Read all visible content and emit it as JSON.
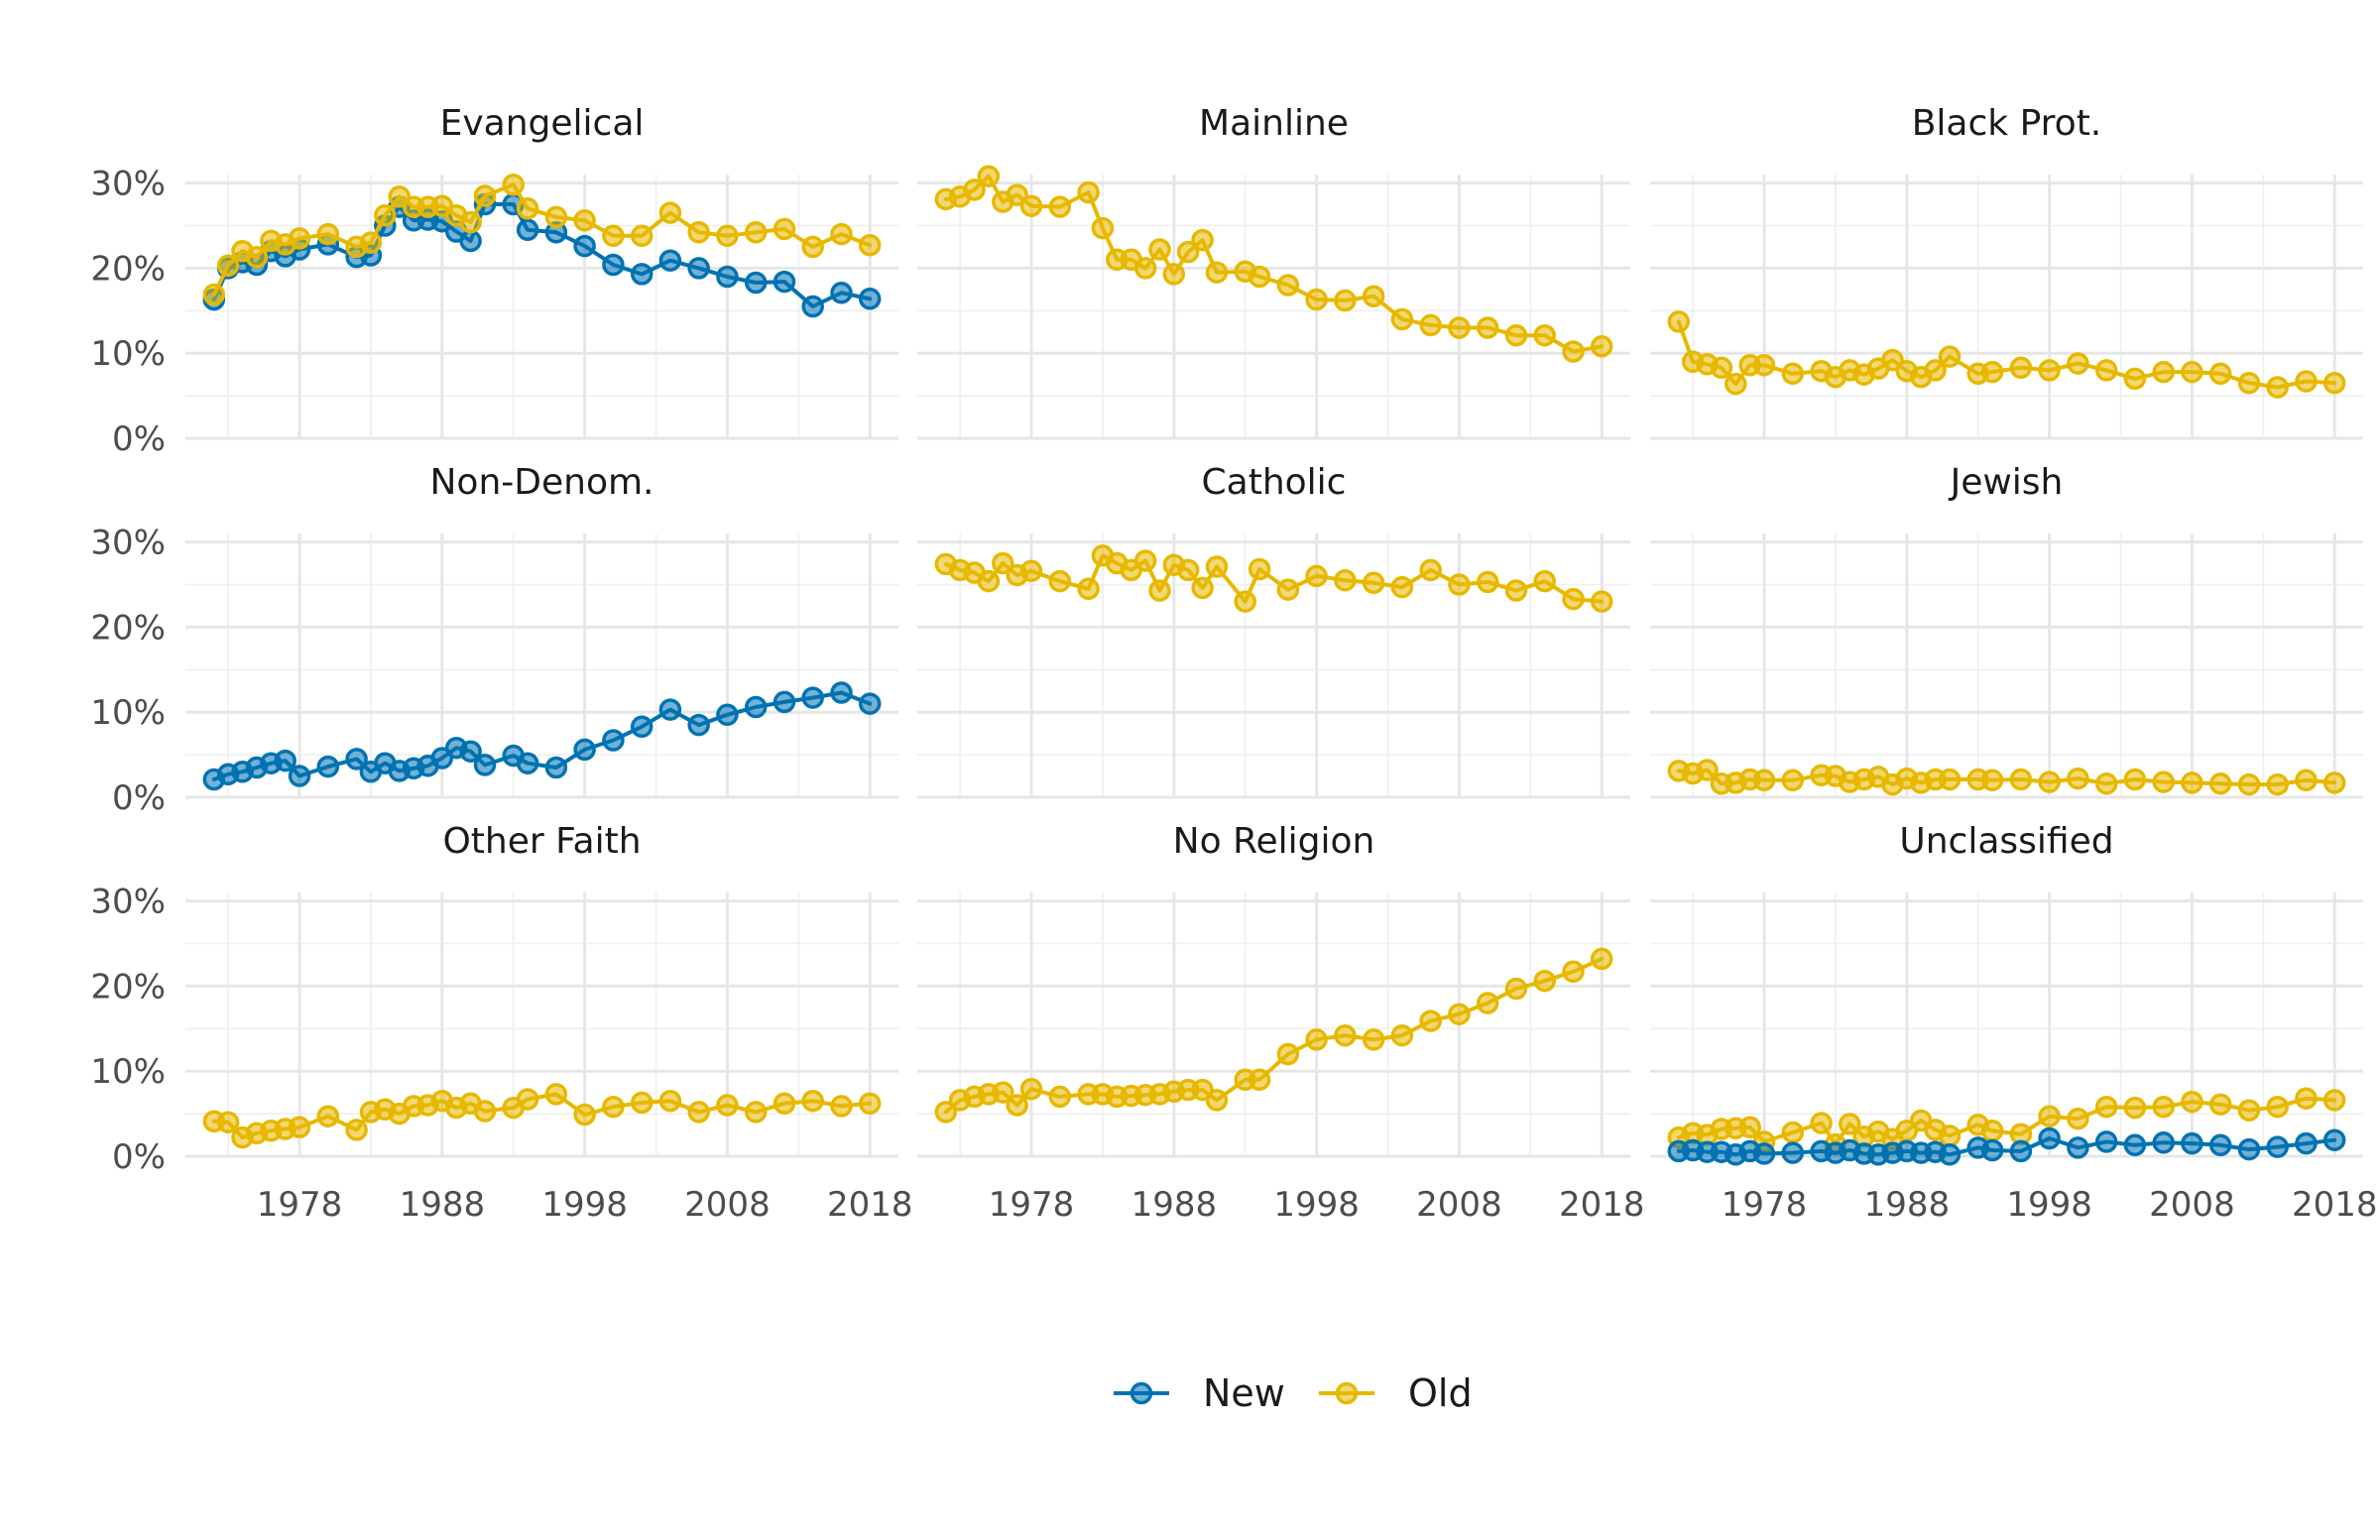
{
  "chart_data": {
    "type": "line",
    "layout": "facet-grid-3x3",
    "title": "",
    "xlabel": "",
    "ylabel": "",
    "xlim": [
      1970,
      2020
    ],
    "ylim": [
      0,
      0.31
    ],
    "x_ticks": [
      1978,
      1988,
      1998,
      2008,
      2018
    ],
    "x_tick_labels": [
      "1978",
      "1988",
      "1998",
      "2008",
      "2018"
    ],
    "y_ticks": [
      0,
      0.1,
      0.2,
      0.3
    ],
    "y_tick_labels": [
      "0%",
      "10%",
      "20%",
      "30%"
    ],
    "grid": true,
    "legend": {
      "position": "bottom",
      "entries": [
        {
          "name": "New",
          "color": "#0072B2"
        },
        {
          "name": "Old",
          "color": "#E7B800"
        }
      ]
    },
    "panels": [
      {
        "title": "Evangelical",
        "series": [
          {
            "name": "New",
            "x": [
              1972,
              1973,
              1974,
              1975,
              1976,
              1977,
              1978,
              1980,
              1982,
              1983,
              1984,
              1985,
              1986,
              1987,
              1988,
              1989,
              1990,
              1991,
              1993,
              1994,
              1996,
              1998,
              2000,
              2002,
              2004,
              2006,
              2008,
              2010,
              2012,
              2014,
              2016,
              2018
            ],
            "y": [
              0.163,
              0.2,
              0.207,
              0.204,
              0.22,
              0.214,
              0.222,
              0.228,
              0.213,
              0.215,
              0.25,
              0.272,
              0.256,
              0.257,
              0.255,
              0.243,
              0.232,
              0.275,
              0.275,
              0.245,
              0.242,
              0.226,
              0.204,
              0.193,
              0.209,
              0.2,
              0.19,
              0.183,
              0.184,
              0.155,
              0.171,
              0.164
            ]
          },
          {
            "name": "Old",
            "x": [
              1972,
              1973,
              1974,
              1975,
              1976,
              1977,
              1978,
              1980,
              1982,
              1983,
              1984,
              1985,
              1986,
              1987,
              1988,
              1989,
              1990,
              1991,
              1993,
              1994,
              1996,
              1998,
              2000,
              2002,
              2004,
              2006,
              2008,
              2010,
              2012,
              2014,
              2016,
              2018
            ],
            "y": [
              0.169,
              0.203,
              0.22,
              0.213,
              0.232,
              0.228,
              0.235,
              0.24,
              0.225,
              0.23,
              0.262,
              0.284,
              0.272,
              0.272,
              0.273,
              0.262,
              0.254,
              0.285,
              0.298,
              0.27,
              0.26,
              0.256,
              0.238,
              0.238,
              0.265,
              0.242,
              0.238,
              0.242,
              0.246,
              0.225,
              0.24,
              0.227
            ]
          }
        ]
      },
      {
        "title": "Mainline",
        "series": [
          {
            "name": "Old",
            "x": [
              1972,
              1973,
              1974,
              1975,
              1976,
              1977,
              1978,
              1980,
              1982,
              1983,
              1984,
              1985,
              1986,
              1987,
              1988,
              1989,
              1990,
              1991,
              1993,
              1994,
              1996,
              1998,
              2000,
              2002,
              2004,
              2006,
              2008,
              2010,
              2012,
              2014,
              2016,
              2018
            ],
            "y": [
              0.281,
              0.284,
              0.292,
              0.308,
              0.278,
              0.286,
              0.273,
              0.272,
              0.289,
              0.247,
              0.21,
              0.21,
              0.2,
              0.222,
              0.193,
              0.219,
              0.233,
              0.195,
              0.196,
              0.19,
              0.18,
              0.163,
              0.162,
              0.167,
              0.14,
              0.133,
              0.13,
              0.13,
              0.121,
              0.121,
              0.102,
              0.108
            ]
          }
        ]
      },
      {
        "title": "Black Prot.",
        "series": [
          {
            "name": "Old",
            "x": [
              1972,
              1973,
              1974,
              1975,
              1976,
              1977,
              1978,
              1980,
              1982,
              1983,
              1984,
              1985,
              1986,
              1987,
              1988,
              1989,
              1990,
              1991,
              1993,
              1994,
              1996,
              1998,
              2000,
              2002,
              2004,
              2006,
              2008,
              2010,
              2012,
              2014,
              2016,
              2018
            ],
            "y": [
              0.137,
              0.09,
              0.087,
              0.083,
              0.064,
              0.086,
              0.086,
              0.076,
              0.079,
              0.072,
              0.08,
              0.075,
              0.082,
              0.092,
              0.079,
              0.072,
              0.08,
              0.096,
              0.076,
              0.078,
              0.083,
              0.08,
              0.088,
              0.08,
              0.07,
              0.078,
              0.078,
              0.076,
              0.065,
              0.06,
              0.067,
              0.065
            ]
          }
        ]
      },
      {
        "title": "Non-Denom.",
        "series": [
          {
            "name": "New",
            "x": [
              1972,
              1973,
              1974,
              1975,
              1976,
              1977,
              1978,
              1980,
              1982,
              1983,
              1984,
              1985,
              1986,
              1987,
              1988,
              1989,
              1990,
              1991,
              1993,
              1994,
              1996,
              1998,
              2000,
              2002,
              2004,
              2006,
              2008,
              2010,
              2012,
              2014,
              2016,
              2018
            ],
            "y": [
              0.021,
              0.027,
              0.03,
              0.035,
              0.04,
              0.043,
              0.025,
              0.036,
              0.045,
              0.03,
              0.04,
              0.031,
              0.034,
              0.037,
              0.046,
              0.058,
              0.054,
              0.038,
              0.049,
              0.04,
              0.035,
              0.056,
              0.067,
              0.083,
              0.103,
              0.085,
              0.097,
              0.106,
              0.112,
              0.117,
              0.123,
              0.11
            ]
          }
        ]
      },
      {
        "title": "Catholic",
        "series": [
          {
            "name": "Old",
            "x": [
              1972,
              1973,
              1974,
              1975,
              1976,
              1977,
              1978,
              1980,
              1982,
              1983,
              1984,
              1985,
              1986,
              1987,
              1988,
              1989,
              1990,
              1991,
              1993,
              1994,
              1996,
              1998,
              2000,
              2002,
              2004,
              2006,
              2008,
              2010,
              2012,
              2014,
              2016,
              2018
            ],
            "y": [
              0.274,
              0.267,
              0.264,
              0.254,
              0.275,
              0.261,
              0.266,
              0.254,
              0.245,
              0.284,
              0.275,
              0.267,
              0.278,
              0.243,
              0.273,
              0.267,
              0.246,
              0.271,
              0.23,
              0.268,
              0.244,
              0.26,
              0.255,
              0.252,
              0.247,
              0.267,
              0.25,
              0.253,
              0.243,
              0.254,
              0.233,
              0.23
            ]
          }
        ]
      },
      {
        "title": "Jewish",
        "series": [
          {
            "name": "Old",
            "x": [
              1972,
              1973,
              1974,
              1975,
              1976,
              1977,
              1978,
              1980,
              1982,
              1983,
              1984,
              1985,
              1986,
              1987,
              1988,
              1989,
              1990,
              1991,
              1993,
              1994,
              1996,
              1998,
              2000,
              2002,
              2004,
              2006,
              2008,
              2010,
              2012,
              2014,
              2016,
              2018
            ],
            "y": [
              0.031,
              0.028,
              0.032,
              0.016,
              0.017,
              0.021,
              0.02,
              0.02,
              0.026,
              0.025,
              0.018,
              0.021,
              0.024,
              0.015,
              0.022,
              0.017,
              0.021,
              0.021,
              0.021,
              0.02,
              0.021,
              0.018,
              0.022,
              0.016,
              0.021,
              0.018,
              0.017,
              0.016,
              0.015,
              0.015,
              0.02,
              0.017
            ]
          }
        ]
      },
      {
        "title": "Other Faith",
        "series": [
          {
            "name": "Old",
            "x": [
              1972,
              1973,
              1974,
              1975,
              1976,
              1977,
              1978,
              1980,
              1982,
              1983,
              1984,
              1985,
              1986,
              1987,
              1988,
              1989,
              1990,
              1991,
              1993,
              1994,
              1996,
              1998,
              2000,
              2002,
              2004,
              2006,
              2008,
              2010,
              2012,
              2014,
              2016,
              2018
            ],
            "y": [
              0.041,
              0.04,
              0.022,
              0.027,
              0.03,
              0.032,
              0.034,
              0.047,
              0.031,
              0.052,
              0.055,
              0.05,
              0.059,
              0.06,
              0.065,
              0.057,
              0.062,
              0.053,
              0.057,
              0.067,
              0.073,
              0.049,
              0.058,
              0.063,
              0.065,
              0.052,
              0.06,
              0.052,
              0.062,
              0.065,
              0.059,
              0.062
            ]
          }
        ]
      },
      {
        "title": "No Religion",
        "series": [
          {
            "name": "Old",
            "x": [
              1972,
              1973,
              1974,
              1975,
              1976,
              1977,
              1978,
              1980,
              1982,
              1983,
              1984,
              1985,
              1986,
              1987,
              1988,
              1989,
              1990,
              1991,
              1993,
              1994,
              1996,
              1998,
              2000,
              2002,
              2004,
              2006,
              2008,
              2010,
              2012,
              2014,
              2016,
              2018
            ],
            "y": [
              0.052,
              0.066,
              0.07,
              0.073,
              0.075,
              0.06,
              0.079,
              0.07,
              0.073,
              0.073,
              0.07,
              0.071,
              0.072,
              0.073,
              0.076,
              0.078,
              0.078,
              0.066,
              0.09,
              0.09,
              0.12,
              0.137,
              0.142,
              0.137,
              0.142,
              0.159,
              0.167,
              0.18,
              0.197,
              0.206,
              0.217,
              0.232
            ]
          }
        ]
      },
      {
        "title": "Unclassified",
        "series": [
          {
            "name": "Old",
            "x": [
              1972,
              1973,
              1974,
              1975,
              1976,
              1977,
              1978,
              1980,
              1982,
              1983,
              1984,
              1985,
              1986,
              1987,
              1988,
              1989,
              1990,
              1991,
              1993,
              1994,
              1996,
              1998,
              2000,
              2002,
              2004,
              2006,
              2008,
              2010,
              2012,
              2014,
              2016,
              2018
            ],
            "y": [
              0.022,
              0.027,
              0.025,
              0.032,
              0.033,
              0.034,
              0.017,
              0.028,
              0.039,
              0.014,
              0.038,
              0.023,
              0.029,
              0.02,
              0.03,
              0.042,
              0.031,
              0.024,
              0.037,
              0.03,
              0.026,
              0.047,
              0.044,
              0.058,
              0.057,
              0.058,
              0.064,
              0.061,
              0.054,
              0.058,
              0.068,
              0.066
            ]
          },
          {
            "name": "New",
            "x": [
              1972,
              1973,
              1974,
              1975,
              1976,
              1977,
              1978,
              1980,
              1982,
              1983,
              1984,
              1985,
              1986,
              1987,
              1988,
              1989,
              1990,
              1991,
              1993,
              1994,
              1996,
              1998,
              2000,
              2002,
              2004,
              2006,
              2008,
              2010,
              2012,
              2014,
              2016,
              2018
            ],
            "y": [
              0.006,
              0.007,
              0.005,
              0.005,
              0.002,
              0.006,
              0.003,
              0.004,
              0.006,
              0.004,
              0.007,
              0.003,
              0.002,
              0.004,
              0.006,
              0.004,
              0.005,
              0.002,
              0.01,
              0.007,
              0.006,
              0.021,
              0.01,
              0.017,
              0.013,
              0.016,
              0.015,
              0.013,
              0.008,
              0.011,
              0.015,
              0.019
            ]
          }
        ]
      }
    ]
  }
}
